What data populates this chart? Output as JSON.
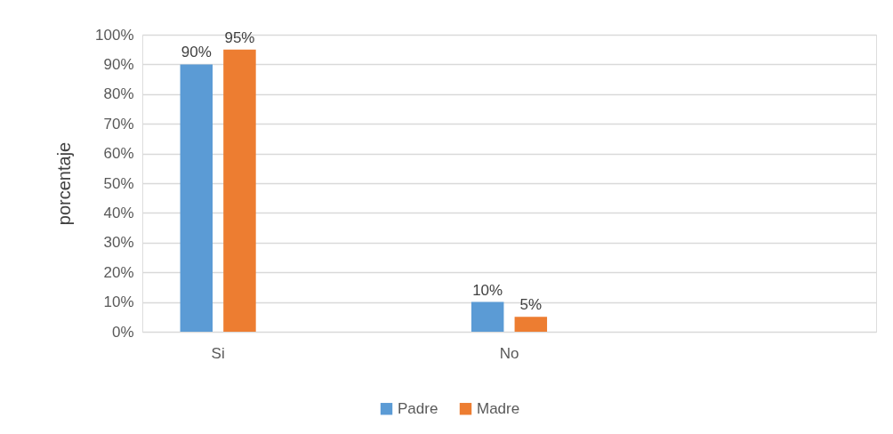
{
  "chart_data": {
    "type": "bar",
    "ylabel": "porcentaje",
    "categories": [
      "Si",
      "No",
      null
    ],
    "series": [
      {
        "name": "Padre",
        "color": "#5b9bd5",
        "values": [
          90,
          10,
          null
        ],
        "value_labels": [
          "90%",
          "10%",
          null
        ]
      },
      {
        "name": "Madre",
        "color": "#ed7d31",
        "values": [
          95,
          5,
          null
        ],
        "value_labels": [
          "95%",
          "5%",
          null
        ]
      }
    ],
    "ylim": [
      0,
      100
    ],
    "yticks": [
      {
        "value": 0,
        "label": "0%"
      },
      {
        "value": 10,
        "label": "10%"
      },
      {
        "value": 20,
        "label": "20%"
      },
      {
        "value": 30,
        "label": "30%"
      },
      {
        "value": 40,
        "label": "40%"
      },
      {
        "value": 50,
        "label": "50%"
      },
      {
        "value": 60,
        "label": "60%"
      },
      {
        "value": 70,
        "label": "70%"
      },
      {
        "value": 80,
        "label": "80%"
      },
      {
        "value": 90,
        "label": "90%"
      },
      {
        "value": 100,
        "label": "100%"
      }
    ],
    "grid": "y",
    "legend": "bottom"
  }
}
